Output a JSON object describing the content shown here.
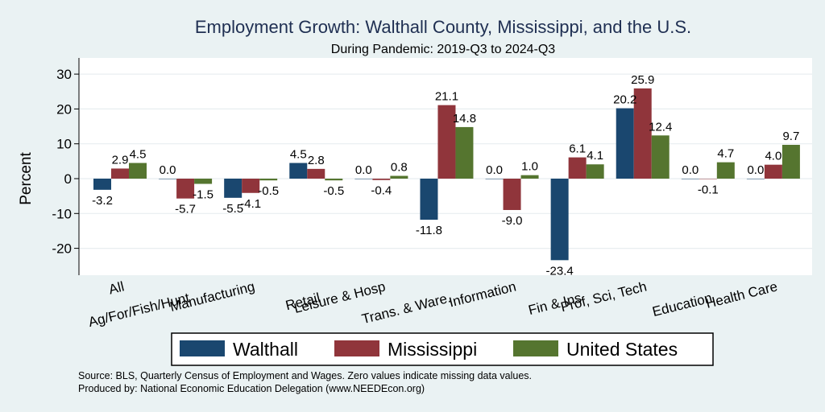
{
  "chart_data": {
    "type": "bar",
    "title": "Employment Growth: Walthall County, Mississippi, and the U.S.",
    "subtitle": "During Pandemic: 2019-Q3 to 2024-Q3",
    "ylabel": "Percent",
    "ylim": [
      -30,
      35
    ],
    "yticks": [
      -20,
      -10,
      0,
      10,
      20,
      30
    ],
    "grid": true,
    "legend_position": "bottom",
    "categories": [
      "All",
      "Ag/For/Fish/Hunt",
      "Manufacturing",
      "Retail",
      "Leisure & Hosp",
      "Trans. & Ware.",
      "Information",
      "Fin & Ins",
      "Prof, Sci, Tech",
      "Education",
      "Health Care"
    ],
    "series": [
      {
        "name": "Walthall",
        "color": "#1a476f",
        "values": [
          -3.2,
          0.0,
          -5.5,
          4.5,
          0.0,
          -11.8,
          0.0,
          -23.4,
          20.2,
          0.0,
          0.0
        ]
      },
      {
        "name": "Mississippi",
        "color": "#90353b",
        "values": [
          2.9,
          -5.7,
          -4.1,
          2.8,
          -0.4,
          21.1,
          -9.0,
          6.1,
          25.9,
          -0.1,
          4.0
        ]
      },
      {
        "name": "United States",
        "color": "#55752f",
        "values": [
          4.5,
          -1.5,
          -0.5,
          -0.5,
          0.8,
          14.8,
          1.0,
          4.1,
          12.4,
          4.7,
          9.7
        ]
      }
    ],
    "source_lines": [
      "Source: BLS, Quarterly Census of Employment and Wages. Zero values indicate missing data values.",
      "Produced by: National Economic Education Delegation (www.NEEDEcon.org)"
    ]
  }
}
